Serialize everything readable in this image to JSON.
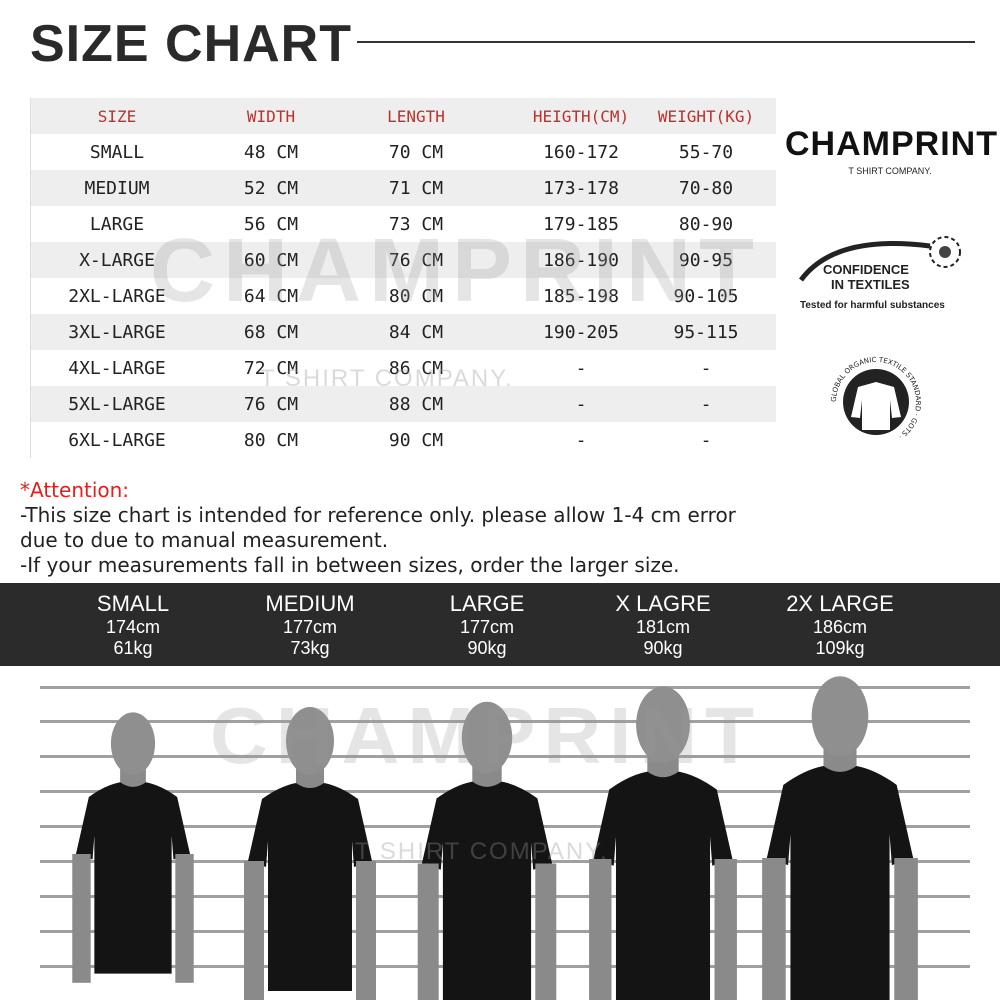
{
  "title": "SIZE CHART",
  "table": {
    "headers": [
      "SIZE",
      "WIDTH",
      "LENGTH",
      "HEIGTH(CM)",
      "WEIGHT(KG)"
    ],
    "rows": [
      [
        "SMALL",
        "48 CM",
        "70 CM",
        "160-172",
        "55-70"
      ],
      [
        "MEDIUM",
        "52 CM",
        "71 CM",
        "173-178",
        "70-80"
      ],
      [
        "LARGE",
        "56 CM",
        "73 CM",
        "179-185",
        "80-90"
      ],
      [
        "X-LARGE",
        "60 CM",
        "76 CM",
        "186-190",
        "90-95"
      ],
      [
        "2XL-LARGE",
        "64 CM",
        "80 CM",
        "185-198",
        "90-105"
      ],
      [
        "3XL-LARGE",
        "68 CM",
        "84 CM",
        "190-205",
        "95-115"
      ],
      [
        "4XL-LARGE",
        "72 CM",
        "86 CM",
        "-",
        "-"
      ],
      [
        "5XL-LARGE",
        "76 CM",
        "88 CM",
        "-",
        "-"
      ],
      [
        "6XL-LARGE",
        "80 CM",
        "90 CM",
        "-",
        "-"
      ]
    ]
  },
  "brand": {
    "name": "CHAMPRINT",
    "tagline": "T SHIRT COMPANY.",
    "accent": "#f0862a"
  },
  "badges": {
    "oeko_line1": "CONFIDENCE",
    "oeko_line2": "IN TEXTILES",
    "oeko_sub": "Tested for harmful substances",
    "gots": "GLOBAL ORGANIC TEXTILE STANDARD · GOTS ·"
  },
  "attention": {
    "heading": "*Attention:",
    "line1": "-This size chart is intended for reference only. please allow 1-4 cm error",
    "line2": "due to due to manual measurement.",
    "line3": "-If your measurements fall in between sizes, order the larger size."
  },
  "models": [
    {
      "size": "SMALL",
      "height": "174cm",
      "weight": "61kg"
    },
    {
      "size": "MEDIUM",
      "height": "177cm",
      "weight": "73kg"
    },
    {
      "size": "LARGE",
      "height": "177cm",
      "weight": "90kg"
    },
    {
      "size": "X LAGRE",
      "height": "181cm",
      "weight": "90kg"
    },
    {
      "size": "2X LARGE",
      "height": "186cm",
      "weight": "109kg"
    }
  ]
}
